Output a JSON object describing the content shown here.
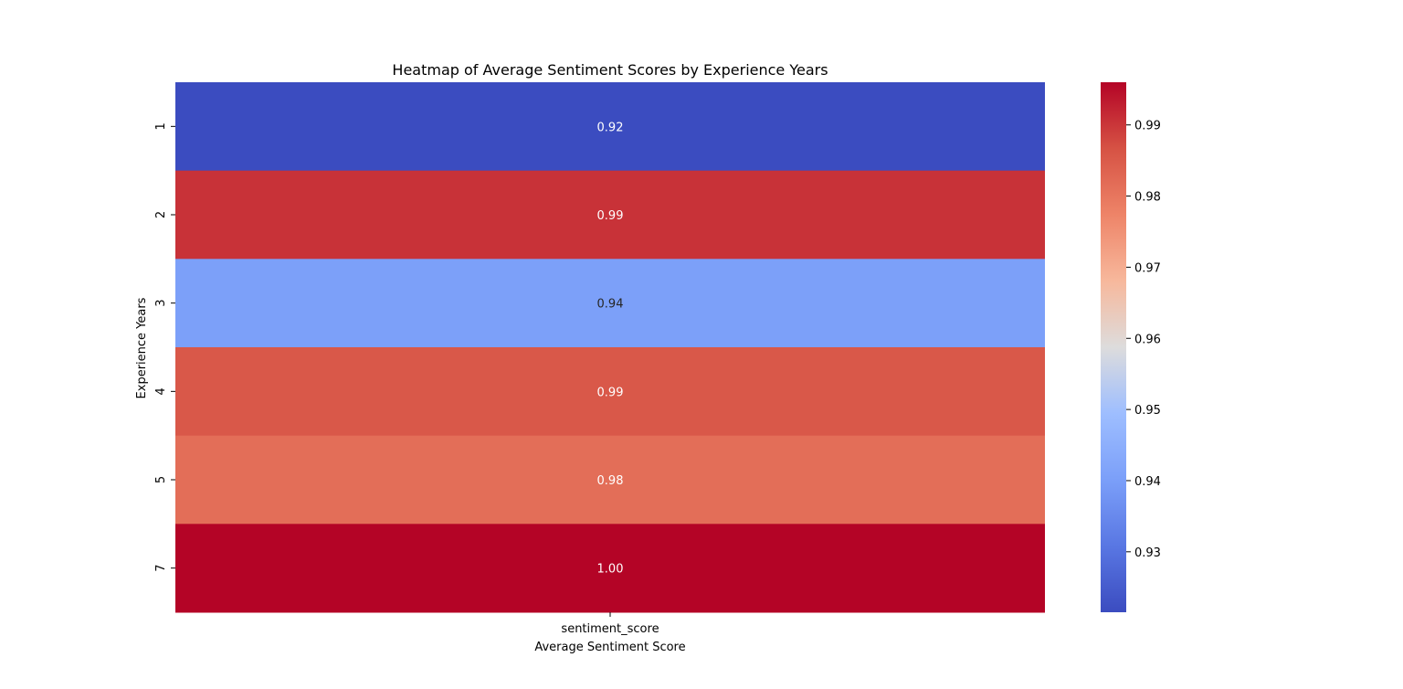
{
  "chart_data": {
    "type": "heatmap",
    "title": "Heatmap of Average Sentiment Scores by Experience Years",
    "xlabel": "Average Sentiment Score",
    "ylabel": "Experience Years",
    "columns": [
      "sentiment_score"
    ],
    "rows": [
      "1",
      "2",
      "3",
      "4",
      "5",
      "7"
    ],
    "values": [
      0.9215,
      0.9905,
      0.9405,
      0.9855,
      0.9815,
      0.996
    ],
    "value_labels": [
      "0.92",
      "0.99",
      "0.94",
      "0.99",
      "0.98",
      "1.00"
    ],
    "colormap": "coolwarm",
    "colorbar": {
      "range": [
        0.9215,
        0.996
      ],
      "ticks": [
        0.93,
        0.94,
        0.95,
        0.96,
        0.97,
        0.98,
        0.99
      ],
      "tick_labels": [
        "0.93",
        "0.94",
        "0.95",
        "0.96",
        "0.97",
        "0.98",
        "0.99"
      ]
    },
    "legend_position": "right"
  }
}
